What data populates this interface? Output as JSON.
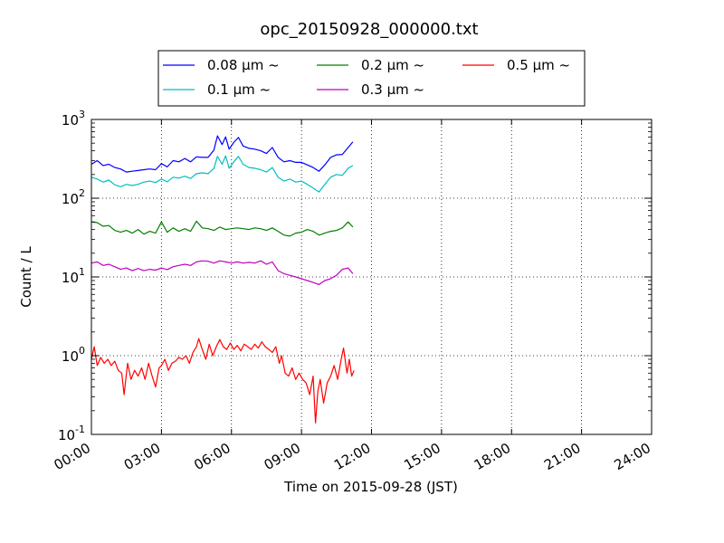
{
  "chart_data": {
    "type": "line",
    "title": "opc_20150928_000000.txt",
    "xlabel": "Time on 2015-09-28 (JST)",
    "ylabel": "Count / L",
    "x_unit": "hours",
    "xlim": [
      0,
      24
    ],
    "ylim": [
      0.1,
      1000
    ],
    "y_scale": "log",
    "grid": true,
    "legend_placement": "top-center",
    "x_ticks": [
      {
        "value": 0,
        "label": "00:00"
      },
      {
        "value": 3,
        "label": "03:00"
      },
      {
        "value": 6,
        "label": "06:00"
      },
      {
        "value": 9,
        "label": "09:00"
      },
      {
        "value": 12,
        "label": "12:00"
      },
      {
        "value": 15,
        "label": "15:00"
      },
      {
        "value": 18,
        "label": "18:00"
      },
      {
        "value": 21,
        "label": "21:00"
      },
      {
        "value": 24,
        "label": "24:00"
      }
    ],
    "y_ticks": [
      {
        "value": 0.1,
        "base": "10",
        "exp": "-1"
      },
      {
        "value": 1,
        "base": "10",
        "exp": "0"
      },
      {
        "value": 10,
        "base": "10",
        "exp": "1"
      },
      {
        "value": 100,
        "base": "10",
        "exp": "2"
      },
      {
        "value": 1000,
        "base": "10",
        "exp": "3"
      }
    ],
    "series": [
      {
        "name": "0.08 μm ~",
        "color": "#0000ff",
        "points": [
          [
            0.0,
            270
          ],
          [
            0.25,
            300
          ],
          [
            0.5,
            260
          ],
          [
            0.75,
            270
          ],
          [
            1.0,
            245
          ],
          [
            1.25,
            235
          ],
          [
            1.5,
            215
          ],
          [
            1.75,
            220
          ],
          [
            2.0,
            225
          ],
          [
            2.25,
            230
          ],
          [
            2.5,
            235
          ],
          [
            2.75,
            230
          ],
          [
            3.0,
            275
          ],
          [
            3.25,
            250
          ],
          [
            3.5,
            300
          ],
          [
            3.75,
            290
          ],
          [
            4.0,
            320
          ],
          [
            4.25,
            290
          ],
          [
            4.5,
            335
          ],
          [
            4.75,
            330
          ],
          [
            5.0,
            330
          ],
          [
            5.25,
            410
          ],
          [
            5.4,
            620
          ],
          [
            5.6,
            480
          ],
          [
            5.75,
            600
          ],
          [
            5.9,
            420
          ],
          [
            6.1,
            510
          ],
          [
            6.3,
            590
          ],
          [
            6.5,
            460
          ],
          [
            6.75,
            430
          ],
          [
            7.0,
            420
          ],
          [
            7.25,
            400
          ],
          [
            7.5,
            370
          ],
          [
            7.75,
            440
          ],
          [
            8.0,
            330
          ],
          [
            8.25,
            290
          ],
          [
            8.5,
            300
          ],
          [
            8.75,
            285
          ],
          [
            9.0,
            285
          ],
          [
            9.25,
            265
          ],
          [
            9.5,
            245
          ],
          [
            9.75,
            220
          ],
          [
            10.0,
            265
          ],
          [
            10.25,
            330
          ],
          [
            10.5,
            355
          ],
          [
            10.75,
            360
          ],
          [
            11.0,
            440
          ],
          [
            11.2,
            520
          ]
        ]
      },
      {
        "name": "0.1 μm ~",
        "color": "#00bfbf",
        "points": [
          [
            0.0,
            185
          ],
          [
            0.25,
            175
          ],
          [
            0.5,
            160
          ],
          [
            0.75,
            170
          ],
          [
            1.0,
            148
          ],
          [
            1.25,
            140
          ],
          [
            1.5,
            150
          ],
          [
            1.75,
            145
          ],
          [
            2.0,
            150
          ],
          [
            2.25,
            160
          ],
          [
            2.5,
            165
          ],
          [
            2.75,
            158
          ],
          [
            3.0,
            175
          ],
          [
            3.25,
            162
          ],
          [
            3.5,
            185
          ],
          [
            3.75,
            180
          ],
          [
            4.0,
            190
          ],
          [
            4.25,
            178
          ],
          [
            4.5,
            205
          ],
          [
            4.75,
            210
          ],
          [
            5.0,
            205
          ],
          [
            5.25,
            240
          ],
          [
            5.4,
            340
          ],
          [
            5.6,
            270
          ],
          [
            5.75,
            345
          ],
          [
            5.9,
            240
          ],
          [
            6.1,
            290
          ],
          [
            6.3,
            340
          ],
          [
            6.5,
            270
          ],
          [
            6.75,
            245
          ],
          [
            7.0,
            240
          ],
          [
            7.25,
            230
          ],
          [
            7.5,
            215
          ],
          [
            7.75,
            245
          ],
          [
            8.0,
            185
          ],
          [
            8.25,
            165
          ],
          [
            8.5,
            175
          ],
          [
            8.75,
            160
          ],
          [
            9.0,
            165
          ],
          [
            9.25,
            150
          ],
          [
            9.5,
            135
          ],
          [
            9.75,
            120
          ],
          [
            10.0,
            150
          ],
          [
            10.25,
            185
          ],
          [
            10.5,
            200
          ],
          [
            10.75,
            195
          ],
          [
            11.0,
            240
          ],
          [
            11.2,
            260
          ]
        ]
      },
      {
        "name": "0.2 μm ~",
        "color": "#008000",
        "points": [
          [
            0.0,
            50
          ],
          [
            0.25,
            49
          ],
          [
            0.5,
            44
          ],
          [
            0.75,
            45
          ],
          [
            1.0,
            39
          ],
          [
            1.25,
            37
          ],
          [
            1.5,
            39
          ],
          [
            1.75,
            36
          ],
          [
            2.0,
            40
          ],
          [
            2.25,
            35
          ],
          [
            2.5,
            38
          ],
          [
            2.75,
            36
          ],
          [
            3.0,
            50
          ],
          [
            3.25,
            37
          ],
          [
            3.5,
            42
          ],
          [
            3.75,
            38
          ],
          [
            4.0,
            41
          ],
          [
            4.25,
            38
          ],
          [
            4.5,
            51
          ],
          [
            4.75,
            42
          ],
          [
            5.0,
            41
          ],
          [
            5.25,
            39
          ],
          [
            5.5,
            43
          ],
          [
            5.75,
            40
          ],
          [
            6.0,
            41
          ],
          [
            6.25,
            42
          ],
          [
            6.5,
            41
          ],
          [
            6.75,
            40
          ],
          [
            7.0,
            42
          ],
          [
            7.25,
            41
          ],
          [
            7.5,
            39
          ],
          [
            7.75,
            42
          ],
          [
            8.0,
            38
          ],
          [
            8.25,
            34
          ],
          [
            8.5,
            33
          ],
          [
            8.75,
            36
          ],
          [
            9.0,
            37
          ],
          [
            9.25,
            40
          ],
          [
            9.5,
            38
          ],
          [
            9.75,
            34
          ],
          [
            10.0,
            36
          ],
          [
            10.25,
            38
          ],
          [
            10.5,
            39
          ],
          [
            10.75,
            42
          ],
          [
            11.0,
            50
          ],
          [
            11.2,
            43
          ]
        ]
      },
      {
        "name": "0.3 μm ~",
        "color": "#bf00bf",
        "points": [
          [
            0.0,
            15
          ],
          [
            0.25,
            15.5
          ],
          [
            0.5,
            14
          ],
          [
            0.75,
            14.5
          ],
          [
            1.0,
            13.5
          ],
          [
            1.25,
            12.5
          ],
          [
            1.5,
            13
          ],
          [
            1.75,
            12
          ],
          [
            2.0,
            12.8
          ],
          [
            2.25,
            12
          ],
          [
            2.5,
            12.5
          ],
          [
            2.75,
            12.2
          ],
          [
            3.0,
            13
          ],
          [
            3.25,
            12.4
          ],
          [
            3.5,
            13.5
          ],
          [
            3.75,
            14
          ],
          [
            4.0,
            14.5
          ],
          [
            4.25,
            14
          ],
          [
            4.5,
            15.5
          ],
          [
            4.75,
            16
          ],
          [
            5.0,
            15.8
          ],
          [
            5.25,
            15
          ],
          [
            5.5,
            16
          ],
          [
            5.75,
            15.5
          ],
          [
            6.0,
            15
          ],
          [
            6.25,
            15.5
          ],
          [
            6.5,
            15
          ],
          [
            6.75,
            15.3
          ],
          [
            7.0,
            15
          ],
          [
            7.25,
            16
          ],
          [
            7.5,
            14.5
          ],
          [
            7.75,
            15.5
          ],
          [
            8.0,
            12
          ],
          [
            8.25,
            11
          ],
          [
            8.5,
            10.5
          ],
          [
            8.75,
            10
          ],
          [
            9.0,
            9.5
          ],
          [
            9.25,
            9
          ],
          [
            9.5,
            8.5
          ],
          [
            9.75,
            8
          ],
          [
            10.0,
            9
          ],
          [
            10.25,
            9.5
          ],
          [
            10.5,
            10.5
          ],
          [
            10.75,
            12.5
          ],
          [
            11.0,
            13
          ],
          [
            11.2,
            11
          ]
        ]
      },
      {
        "name": "0.5 μm ~",
        "color": "#ff0000",
        "points": [
          [
            0.0,
            0.9
          ],
          [
            0.12,
            1.3
          ],
          [
            0.25,
            0.75
          ],
          [
            0.4,
            0.95
          ],
          [
            0.55,
            0.8
          ],
          [
            0.7,
            0.9
          ],
          [
            0.85,
            0.75
          ],
          [
            1.0,
            0.85
          ],
          [
            1.15,
            0.65
          ],
          [
            1.3,
            0.6
          ],
          [
            1.4,
            0.32
          ],
          [
            1.55,
            0.8
          ],
          [
            1.7,
            0.5
          ],
          [
            1.85,
            0.65
          ],
          [
            2.0,
            0.55
          ],
          [
            2.15,
            0.7
          ],
          [
            2.3,
            0.5
          ],
          [
            2.45,
            0.8
          ],
          [
            2.6,
            0.55
          ],
          [
            2.75,
            0.4
          ],
          [
            2.9,
            0.7
          ],
          [
            3.0,
            0.75
          ],
          [
            3.15,
            0.9
          ],
          [
            3.3,
            0.65
          ],
          [
            3.45,
            0.8
          ],
          [
            3.6,
            0.85
          ],
          [
            3.75,
            0.95
          ],
          [
            3.9,
            0.9
          ],
          [
            4.05,
            1.0
          ],
          [
            4.2,
            0.8
          ],
          [
            4.35,
            1.1
          ],
          [
            4.5,
            1.3
          ],
          [
            4.6,
            1.65
          ],
          [
            4.75,
            1.2
          ],
          [
            4.9,
            0.9
          ],
          [
            5.05,
            1.4
          ],
          [
            5.2,
            1.0
          ],
          [
            5.35,
            1.3
          ],
          [
            5.5,
            1.6
          ],
          [
            5.65,
            1.3
          ],
          [
            5.8,
            1.2
          ],
          [
            5.95,
            1.45
          ],
          [
            6.1,
            1.2
          ],
          [
            6.25,
            1.35
          ],
          [
            6.4,
            1.15
          ],
          [
            6.55,
            1.4
          ],
          [
            6.7,
            1.3
          ],
          [
            6.85,
            1.2
          ],
          [
            7.0,
            1.4
          ],
          [
            7.15,
            1.25
          ],
          [
            7.3,
            1.5
          ],
          [
            7.45,
            1.3
          ],
          [
            7.6,
            1.2
          ],
          [
            7.75,
            1.1
          ],
          [
            7.9,
            1.3
          ],
          [
            8.05,
            0.8
          ],
          [
            8.15,
            1.0
          ],
          [
            8.3,
            0.6
          ],
          [
            8.45,
            0.55
          ],
          [
            8.6,
            0.7
          ],
          [
            8.75,
            0.5
          ],
          [
            8.9,
            0.6
          ],
          [
            9.05,
            0.5
          ],
          [
            9.2,
            0.45
          ],
          [
            9.35,
            0.32
          ],
          [
            9.5,
            0.55
          ],
          [
            9.6,
            0.14
          ],
          [
            9.7,
            0.35
          ],
          [
            9.8,
            0.5
          ],
          [
            9.95,
            0.25
          ],
          [
            10.1,
            0.45
          ],
          [
            10.25,
            0.55
          ],
          [
            10.4,
            0.75
          ],
          [
            10.55,
            0.5
          ],
          [
            10.7,
            0.9
          ],
          [
            10.8,
            1.25
          ],
          [
            10.95,
            0.6
          ],
          [
            11.05,
            0.9
          ],
          [
            11.15,
            0.55
          ],
          [
            11.25,
            0.65
          ]
        ]
      }
    ]
  }
}
